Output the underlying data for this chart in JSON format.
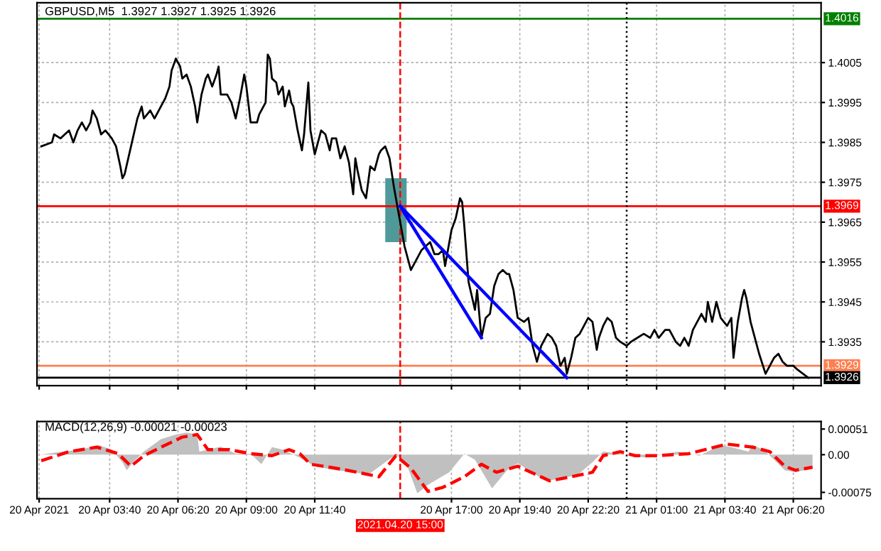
{
  "chart_data": [
    {
      "type": "line",
      "title": "GBPUSD,M5  1.3927 1.3927 1.3925 1.3926",
      "xlim": [
        "2021-04-20T00:50",
        "2021-04-21T07:25"
      ],
      "ylim": [
        1.3924,
        1.402
      ],
      "yticks": [
        1.3935,
        1.3945,
        1.3955,
        1.3965,
        1.3975,
        1.3985,
        1.3995,
        1.4005
      ],
      "xticks": [
        {
          "value": "2021-04-20T00:55",
          "label": null
        },
        {
          "value": "2021-04-20T03:40",
          "label": null
        },
        {
          "value": "2021-04-20T06:20",
          "label": null
        },
        {
          "value": "2021-04-20T09:00",
          "label": null
        },
        {
          "value": "2021-04-20T11:40",
          "label": null
        },
        {
          "value": "2021-04-20T17:00",
          "label": null
        },
        {
          "value": "2021-04-20T19:40",
          "label": null
        },
        {
          "value": "2021-04-20T22:20",
          "label": null
        },
        {
          "value": "2021-04-21T01:00",
          "label": null
        },
        {
          "value": "2021-04-21T03:40",
          "label": null
        },
        {
          "value": "2021-04-21T06:20",
          "label": null
        }
      ],
      "tick_labels": "y",
      "grid": true,
      "series": [
        {
          "type": "bar",
          "color": "#4f9a98",
          "x": [
            "2021-04-20T14:50"
          ],
          "base": [
            1.396
          ],
          "values": [
            0.0016
          ]
        },
        {
          "color": "#000000",
          "x": [
            "2021-04-20T01:00",
            "2021-04-20T01:25",
            "2021-04-20T01:30",
            "2021-04-20T01:45",
            "2021-04-20T01:55",
            "2021-04-20T02:05",
            "2021-04-20T02:15",
            "2021-04-20T02:25",
            "2021-04-20T02:35",
            "2021-04-20T02:45",
            "2021-04-20T02:55",
            "2021-04-20T03:00",
            "2021-04-20T03:10",
            "2021-04-20T03:20",
            "2021-04-20T03:30",
            "2021-04-20T03:45",
            "2021-04-20T03:55",
            "2021-04-20T04:05",
            "2021-04-20T04:10",
            "2021-04-20T04:15",
            "2021-04-20T04:30",
            "2021-04-20T04:45",
            "2021-04-20T04:55",
            "2021-04-20T05:00",
            "2021-04-20T05:15",
            "2021-04-20T05:25",
            "2021-04-20T05:40",
            "2021-04-20T05:50",
            "2021-04-20T06:00",
            "2021-04-20T06:05",
            "2021-04-20T06:15",
            "2021-04-20T06:25",
            "2021-04-20T06:30",
            "2021-04-20T06:40",
            "2021-04-20T06:50",
            "2021-04-20T07:00",
            "2021-04-20T07:05",
            "2021-04-20T07:15",
            "2021-04-20T07:25",
            "2021-04-20T07:30",
            "2021-04-20T07:40",
            "2021-04-20T07:50",
            "2021-04-20T07:55",
            "2021-04-20T08:00",
            "2021-04-20T08:15",
            "2021-04-20T08:25",
            "2021-04-20T08:35",
            "2021-04-20T08:45",
            "2021-04-20T08:55",
            "2021-04-20T09:00",
            "2021-04-20T09:10",
            "2021-04-20T09:25",
            "2021-04-20T09:30",
            "2021-04-20T09:45",
            "2021-04-20T09:50",
            "2021-04-20T09:55",
            "2021-04-20T10:00",
            "2021-04-20T10:10",
            "2021-04-20T10:15",
            "2021-04-20T10:25",
            "2021-04-20T10:30",
            "2021-04-20T10:40",
            "2021-04-20T10:45",
            "2021-04-20T10:50",
            "2021-04-20T11:00",
            "2021-04-20T11:10",
            "2021-04-20T11:15",
            "2021-04-20T11:25",
            "2021-04-20T11:30",
            "2021-04-20T11:40",
            "2021-04-20T11:55",
            "2021-04-20T12:05",
            "2021-04-20T12:15",
            "2021-04-20T12:20",
            "2021-04-20T12:30",
            "2021-04-20T12:40",
            "2021-04-20T12:50",
            "2021-04-20T13:00",
            "2021-04-20T13:10",
            "2021-04-20T13:15",
            "2021-04-20T13:20",
            "2021-04-20T13:30",
            "2021-04-20T13:40",
            "2021-04-20T13:50",
            "2021-04-20T14:00",
            "2021-04-20T14:10",
            "2021-04-20T14:15",
            "2021-04-20T14:25",
            "2021-04-20T14:35",
            "2021-04-20T14:45",
            "2021-04-20T14:50",
            "2021-04-20T15:00",
            "2021-04-20T15:10",
            "2021-04-20T15:25",
            "2021-04-20T15:30",
            "2021-04-20T15:40",
            "2021-04-20T15:50",
            "2021-04-20T16:00",
            "2021-04-20T16:10",
            "2021-04-20T16:20",
            "2021-04-20T16:30",
            "2021-04-20T16:40",
            "2021-04-20T16:45",
            "2021-04-20T17:00",
            "2021-04-20T17:10",
            "2021-04-20T17:20",
            "2021-04-20T17:25",
            "2021-04-20T17:30",
            "2021-04-20T17:40",
            "2021-04-20T17:55",
            "2021-04-20T18:00",
            "2021-04-20T18:10",
            "2021-04-20T18:20",
            "2021-04-20T18:30",
            "2021-04-20T18:40",
            "2021-04-20T18:50",
            "2021-04-20T19:00",
            "2021-04-20T19:10",
            "2021-04-20T19:15",
            "2021-04-20T19:25",
            "2021-04-20T19:35",
            "2021-04-20T19:50",
            "2021-04-20T20:00",
            "2021-04-20T20:10",
            "2021-04-20T20:20",
            "2021-04-20T20:30",
            "2021-04-20T20:45",
            "2021-04-20T20:55",
            "2021-04-20T21:05",
            "2021-04-20T21:15",
            "2021-04-20T21:25",
            "2021-04-20T21:30",
            "2021-04-20T21:40",
            "2021-04-20T21:50",
            "2021-04-20T22:00",
            "2021-04-20T22:10",
            "2021-04-20T22:20",
            "2021-04-20T22:30",
            "2021-04-20T22:40",
            "2021-04-20T22:45",
            "2021-04-20T22:55",
            "2021-04-20T23:05",
            "2021-04-20T23:15",
            "2021-04-20T23:25",
            "2021-04-20T23:35",
            "2021-04-20T23:50",
            "2021-04-21T00:00",
            "2021-04-21T00:15",
            "2021-04-21T00:30",
            "2021-04-21T00:45",
            "2021-04-21T00:55",
            "2021-04-21T01:05",
            "2021-04-21T01:20",
            "2021-04-21T01:30",
            "2021-04-21T01:45",
            "2021-04-21T01:55",
            "2021-04-21T02:05",
            "2021-04-21T02:15",
            "2021-04-21T02:25",
            "2021-04-21T02:35",
            "2021-04-21T02:45",
            "2021-04-21T02:55",
            "2021-04-21T03:00",
            "2021-04-21T03:10",
            "2021-04-21T03:20",
            "2021-04-21T03:30",
            "2021-04-21T03:45",
            "2021-04-21T03:55",
            "2021-04-21T04:00",
            "2021-04-21T04:10",
            "2021-04-21T04:20",
            "2021-04-21T04:25",
            "2021-04-21T04:30",
            "2021-04-21T04:40",
            "2021-04-21T04:50",
            "2021-04-21T05:00",
            "2021-04-21T05:15",
            "2021-04-21T05:25",
            "2021-04-21T05:35",
            "2021-04-21T05:45",
            "2021-04-21T05:55",
            "2021-04-21T06:05",
            "2021-04-21T06:20",
            "2021-04-21T06:30",
            "2021-04-21T06:55"
          ],
          "values": [
            1.3984,
            1.3985,
            1.3987,
            1.3986,
            1.3987,
            1.3988,
            1.3985,
            1.3988,
            1.399,
            1.3988,
            1.399,
            1.3993,
            1.3991,
            1.3987,
            1.3988,
            1.3986,
            1.3984,
            1.3979,
            1.3976,
            1.3977,
            1.3984,
            1.3991,
            1.3994,
            1.3991,
            1.3993,
            1.3991,
            1.3994,
            1.3996,
            1.3999,
            1.4003,
            1.4006,
            1.4004,
            1.4001,
            1.4002,
            1.3999,
            1.3994,
            1.399,
            1.3997,
            1.4001,
            1.4002,
            1.3999,
            1.4002,
            1.4004,
            1.3997,
            1.3997,
            1.3995,
            1.3991,
            1.3996,
            1.4002,
            1.3999,
            1.399,
            1.399,
            1.3992,
            1.3995,
            1.4007,
            1.4006,
            1.4001,
            1.4,
            1.3997,
            1.3999,
            1.3994,
            1.3998,
            1.3995,
            1.3994,
            1.3988,
            1.3983,
            1.3987,
            1.4,
            1.3988,
            1.3982,
            1.3988,
            1.3987,
            1.3983,
            1.3986,
            1.3986,
            1.3981,
            1.3984,
            1.398,
            1.3972,
            1.3981,
            1.3978,
            1.3973,
            1.3971,
            1.3979,
            1.3978,
            1.3982,
            1.3983,
            1.3984,
            1.3981,
            1.3974,
            1.3971,
            1.3965,
            1.3959,
            1.3953,
            1.3954,
            1.3956,
            1.3958,
            1.3959,
            1.396,
            1.3957,
            1.3957,
            1.3958,
            1.3954,
            1.3963,
            1.3966,
            1.3971,
            1.397,
            1.3964,
            1.395,
            1.3943,
            1.3948,
            1.3936,
            1.3941,
            1.3942,
            1.3949,
            1.3952,
            1.3953,
            1.3952,
            1.3952,
            1.3948,
            1.3941,
            1.394,
            1.3941,
            1.3934,
            1.393,
            1.3934,
            1.3937,
            1.3936,
            1.3934,
            1.3929,
            1.3931,
            1.3927,
            1.3931,
            1.3936,
            1.3937,
            1.3939,
            1.3941,
            1.394,
            1.3933,
            1.3936,
            1.3939,
            1.3941,
            1.394,
            1.3936,
            1.3935,
            1.3934,
            1.3935,
            1.3936,
            1.3937,
            1.3936,
            1.3938,
            1.3936,
            1.3938,
            1.3938,
            1.3935,
            1.3934,
            1.3936,
            1.3934,
            1.3938,
            1.394,
            1.3942,
            1.394,
            1.3945,
            1.394,
            1.3945,
            1.3941,
            1.3939,
            1.3941,
            1.3931,
            1.394,
            1.3946,
            1.3948,
            1.3946,
            1.394,
            1.3936,
            1.3932,
            1.3927,
            1.3929,
            1.3931,
            1.3932,
            1.393,
            1.3929,
            1.3929,
            1.3928,
            1.3926
          ]
        },
        {
          "type": "line",
          "color": "#0000ff",
          "x": [
            "2021-04-20T15:00",
            "2021-04-20T18:10"
          ],
          "values": [
            1.3969,
            1.3936
          ]
        },
        {
          "type": "line",
          "color": "#0000ff",
          "x": [
            "2021-04-20T15:00",
            "2021-04-20T21:30"
          ],
          "values": [
            1.3969,
            1.3926
          ]
        }
      ],
      "ref_lines": [
        {
          "axis": "y",
          "value": 1.4016,
          "label": "1.4016",
          "color": "#008000"
        },
        {
          "axis": "y",
          "value": 1.3969,
          "label": "1.3969",
          "color": "#ff0000"
        },
        {
          "axis": "y",
          "value": 1.3929,
          "label": "1.3929",
          "color": "#ff7f50"
        },
        {
          "axis": "y",
          "value": 1.3926,
          "label": "1.3926",
          "color": "#000000"
        },
        {
          "axis": "x",
          "value": "2021-04-20T15:00",
          "color": "#ff0000",
          "line_style": "dashed"
        },
        {
          "axis": "x",
          "value": "2021-04-20T23:50",
          "color": "#000000",
          "line_style": "dotted"
        }
      ]
    },
    {
      "type": "area",
      "title": "MACD(12,26,9) -0.00021 -0.00023",
      "xlim": [
        "2021-04-20T00:50",
        "2021-04-21T07:25"
      ],
      "ylim": [
        -0.000875,
        0.00066
      ],
      "yticks": [
        0.00051,
        {
          "value": 0,
          "label": "0.00"
        },
        -0.00075
      ],
      "xticks": [
        {
          "value": "2021-04-20T00:55",
          "label": "20 Apr 2021"
        },
        {
          "value": "2021-04-20T03:40",
          "label": "20 Apr 03:40"
        },
        {
          "value": "2021-04-20T06:20",
          "label": "20 Apr 06:20"
        },
        {
          "value": "2021-04-20T09:00",
          "label": "20 Apr 09:00"
        },
        {
          "value": "2021-04-20T11:40",
          "label": "20 Apr 11:40"
        },
        {
          "value": "2021-04-20T17:00",
          "label": "20 Apr 17:00"
        },
        {
          "value": "2021-04-20T19:40",
          "label": "20 Apr 19:40"
        },
        {
          "value": "2021-04-20T22:20",
          "label": "20 Apr 22:20"
        },
        {
          "value": "2021-04-21T01:00",
          "label": "21 Apr 01:00"
        },
        {
          "value": "2021-04-21T03:40",
          "label": "21 Apr 03:40"
        },
        {
          "value": "2021-04-21T06:20",
          "label": "21 Apr 06:20"
        }
      ],
      "grid": "x",
      "series": [
        {
          "color": "#c0c0c0",
          "x": [
            "2021-04-20T01:00",
            "2021-04-20T01:40",
            "2021-04-20T02:30",
            "2021-04-20T03:15",
            "2021-04-20T03:45",
            "2021-04-20T04:10",
            "2021-04-20T04:20",
            "2021-04-20T04:35",
            "2021-04-20T05:00",
            "2021-04-20T05:40",
            "2021-04-20T06:15",
            "2021-04-20T06:40",
            "2021-04-20T07:05",
            "2021-04-20T07:10",
            "2021-04-20T07:30",
            "2021-04-20T08:00",
            "2021-04-20T08:35",
            "2021-04-20T09:10",
            "2021-04-20T09:35",
            "2021-04-20T10:00",
            "2021-04-20T10:25",
            "2021-04-20T10:50",
            "2021-04-20T11:15",
            "2021-04-20T11:40",
            "2021-04-20T12:30",
            "2021-04-20T13:10",
            "2021-04-20T13:45",
            "2021-04-20T14:25",
            "2021-04-20T14:50",
            "2021-04-20T15:15",
            "2021-04-20T15:40",
            "2021-04-20T16:05",
            "2021-04-20T16:55",
            "2021-04-20T17:30",
            "2021-04-20T17:55",
            "2021-04-20T18:35",
            "2021-04-20T19:10",
            "2021-04-20T19:35",
            "2021-04-20T20:40",
            "2021-04-20T21:15",
            "2021-04-20T21:55",
            "2021-04-20T22:30",
            "2021-04-20T22:55",
            "2021-04-20T23:35",
            "2021-04-21T00:00",
            "2021-04-21T00:35",
            "2021-04-21T01:50",
            "2021-04-21T02:40",
            "2021-04-21T03:30",
            "2021-04-21T03:55",
            "2021-04-21T04:35",
            "2021-04-21T04:45",
            "2021-04-21T05:10",
            "2021-04-21T05:35",
            "2021-04-21T06:00",
            "2021-04-21T06:25",
            "2021-04-21T07:05"
          ],
          "values": [
            0,
            5e-05,
            0.0001,
            0.00019,
            0.0001,
            -0.00015,
            -0.00031,
            -0.00015,
            6e-05,
            0.00031,
            0.0004,
            0.00044,
            0.0004,
            6e-05,
            0.0001,
            0.00016,
            2e-05,
            2e-05,
            -0.00019,
            0.00015,
            0.0001,
            0,
            -0.0001,
            -0.00023,
            -0.00031,
            -0.00035,
            -0.0004,
            -0.00015,
            0,
            -0.00019,
            -0.00077,
            -0.0006,
            -0.00035,
            2e-05,
            -0.0001,
            -0.00067,
            -0.00031,
            -0.00017,
            -0.00052,
            -0.00048,
            -0.0004,
            -0.00015,
            6e-05,
            2e-05,
            -2e-05,
            -6e-05,
            6e-05,
            -2e-05,
            0.00019,
            0.00015,
            6e-05,
            0.00019,
            0.0001,
            -0.0001,
            -0.00031,
            -0.00035,
            -0.00027
          ]
        },
        {
          "type": "line",
          "color": "#ff0000",
          "line_style": "dashed",
          "x": [
            "2021-04-20T01:00",
            "2021-04-20T02:05",
            "2021-04-20T03:10",
            "2021-04-20T04:00",
            "2021-04-20T04:30",
            "2021-04-20T05:00",
            "2021-04-20T05:50",
            "2021-04-20T06:30",
            "2021-04-20T07:05",
            "2021-04-20T07:30",
            "2021-04-20T08:20",
            "2021-04-20T09:10",
            "2021-04-20T10:00",
            "2021-04-20T10:40",
            "2021-04-20T11:05",
            "2021-04-20T11:30",
            "2021-04-20T12:30",
            "2021-04-20T13:20",
            "2021-04-20T14:10",
            "2021-04-20T14:50",
            "2021-04-20T15:25",
            "2021-04-20T16:05",
            "2021-04-20T16:40",
            "2021-04-20T17:30",
            "2021-04-20T18:10",
            "2021-04-20T18:45",
            "2021-04-20T19:35",
            "2021-04-20T20:50",
            "2021-04-20T21:40",
            "2021-04-20T22:30",
            "2021-04-20T22:55",
            "2021-04-20T23:35",
            "2021-04-21T00:10",
            "2021-04-21T01:00",
            "2021-04-21T02:15",
            "2021-04-21T03:45",
            "2021-04-21T04:45",
            "2021-04-21T05:25",
            "2021-04-21T06:00",
            "2021-04-21T06:25",
            "2021-04-21T07:05"
          ],
          "values": [
            -0.00012,
            6e-05,
            0.00015,
            2e-05,
            -0.00023,
            -2e-05,
            0.00019,
            0.00035,
            0.0004,
            0.0001,
            0.0001,
            2e-05,
            -2e-05,
            0.0001,
            2e-05,
            -0.00019,
            -0.00027,
            -0.00035,
            -0.00044,
            -2e-05,
            -0.00027,
            -0.00073,
            -0.00065,
            -0.00044,
            -0.00019,
            -0.00035,
            -0.00023,
            -0.00052,
            -0.00044,
            -0.00035,
            -2e-05,
            6e-05,
            -2e-05,
            -2e-05,
            2e-05,
            0.00021,
            0.00015,
            6e-05,
            -0.00023,
            -0.00031,
            -0.00025
          ]
        }
      ],
      "ref_lines": [
        {
          "axis": "x",
          "value": "2021-04-20T15:00",
          "label": "2021.04.20 15:00",
          "color": "#ff0000",
          "line_style": "dashed"
        },
        {
          "axis": "x",
          "value": "2021-04-20T23:50",
          "color": "#000000",
          "line_style": "dotted"
        }
      ]
    }
  ]
}
